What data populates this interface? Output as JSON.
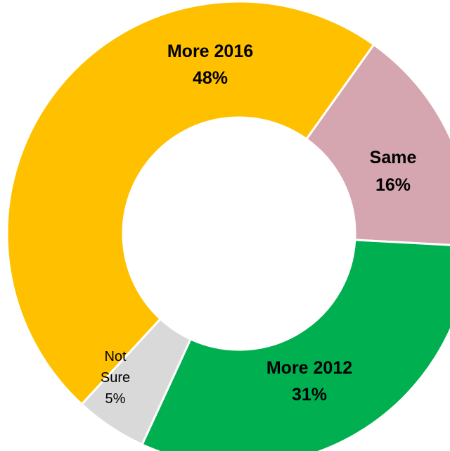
{
  "chart_data": {
    "type": "pie",
    "donut": true,
    "start": "top, clockwise",
    "slices": [
      {
        "name": "Same",
        "label_line1": "Same",
        "label_line2": "16%",
        "value": 16,
        "color": "#D5A6B0"
      },
      {
        "name": "More 2012",
        "label_line1": "More 2012",
        "label_line2": "31%",
        "value": 31,
        "color": "#00B050"
      },
      {
        "name": "Not Sure",
        "label_line1": "Not",
        "label_line2": "Sure",
        "label_line3": "5%",
        "value": 5,
        "color": "#D9D9D9"
      },
      {
        "name": "More 2016",
        "label_line1": "More 2016",
        "label_line2": "48%",
        "value": 48,
        "color": "#FFC000"
      }
    ]
  }
}
